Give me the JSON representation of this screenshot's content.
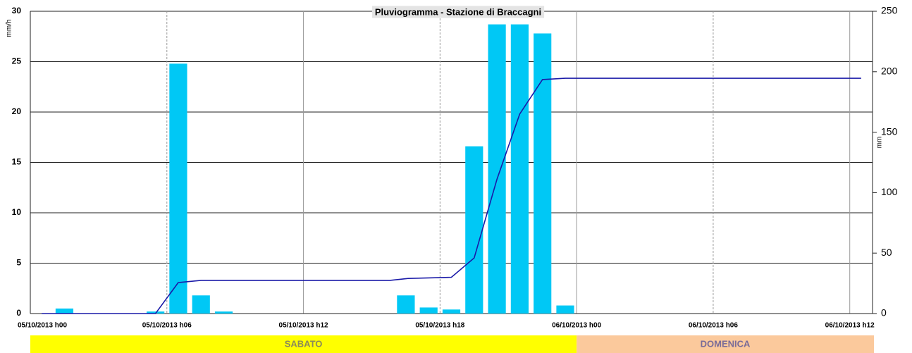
{
  "chart_data": {
    "type": "bar",
    "title": "Pluviogramma - Stazione di Braccagni",
    "y_label": "mm/h",
    "y2_label": "mm",
    "xlim": [
      0,
      37
    ],
    "xticks": [
      {
        "value": 0,
        "label": "05/10/2013 h00"
      },
      {
        "value": 6,
        "label": "05/10/2013 h06"
      },
      {
        "value": 12,
        "label": "05/10/2013 h12"
      },
      {
        "value": 18,
        "label": "05/10/2013 h18"
      },
      {
        "value": 24,
        "label": "06/10/2013 h00"
      },
      {
        "value": 30,
        "label": "06/10/2013 h06"
      },
      {
        "value": 36,
        "label": "06/10/2013 h12"
      }
    ],
    "ylim": [
      0,
      30
    ],
    "yticks": [
      0,
      5,
      10,
      15,
      20,
      25,
      30
    ],
    "y2lim": [
      0,
      250
    ],
    "y2ticks": [
      0,
      50,
      100,
      150,
      200,
      250
    ],
    "grid": true,
    "series": [
      {
        "type": "bar",
        "color": "#00c8f5",
        "x": [
          1.5,
          5.5,
          6.5,
          7.5,
          8.5,
          16.5,
          17.5,
          18.5,
          19.5,
          20.5,
          21.5,
          22.5,
          23.5
        ],
        "values": [
          0.5,
          0.2,
          24.8,
          1.8,
          0.2,
          1.8,
          0.6,
          0.4,
          16.6,
          28.7,
          28.7,
          27.8,
          0.8
        ]
      },
      {
        "type": "line",
        "axis": "y2",
        "color": "#1a1aa8",
        "x": [
          0.5,
          5.5,
          6.5,
          7.5,
          15.8,
          16.6,
          18.5,
          19.5,
          20.5,
          21.5,
          22.5,
          23.5,
          36.5
        ],
        "values": [
          0,
          0,
          25.6,
          27.4,
          27.4,
          29,
          30,
          46,
          111,
          165,
          193.5,
          194.6,
          194.6
        ]
      }
    ],
    "bands": [
      {
        "label": "SABATO",
        "from": 0,
        "to": 24,
        "color": "#ffff00",
        "text_color": "#8a8a5a"
      },
      {
        "label": "DOMENICA",
        "from": 24,
        "to": 37,
        "color": "#fbc99c",
        "text_color": "#7a6c98"
      }
    ]
  }
}
